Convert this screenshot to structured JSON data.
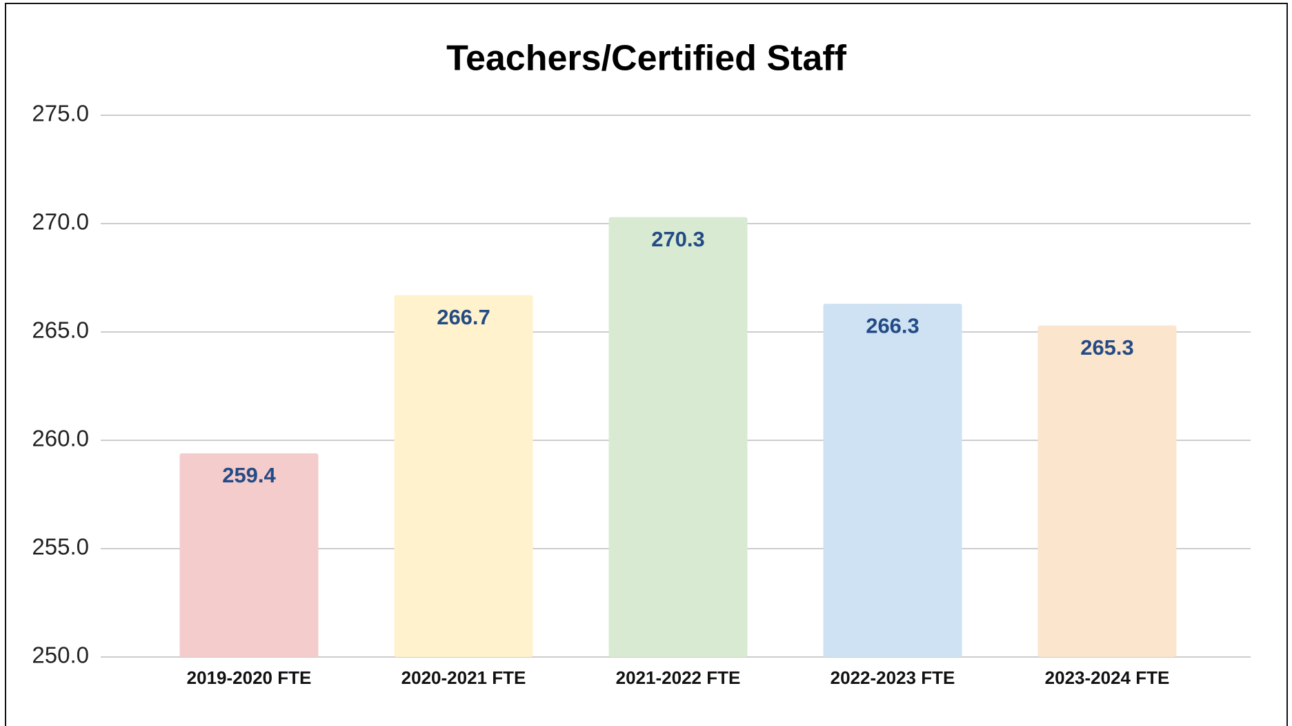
{
  "chart_data": {
    "type": "bar",
    "title": "Teachers/Certified Staff",
    "categories": [
      "2019-2020 FTE",
      "2020-2021 FTE",
      "2021-2022 FTE",
      "2022-2023 FTE",
      "2023-2024 FTE"
    ],
    "values": [
      259.4,
      266.7,
      270.3,
      266.3,
      265.3
    ],
    "colors": [
      "#f4cccc",
      "#fff2cc",
      "#d9ead3",
      "#cfe2f3",
      "#fce5cd"
    ],
    "ylim": [
      250,
      275
    ],
    "yticks": [
      {
        "value": 250,
        "label": "250.0"
      },
      {
        "value": 255,
        "label": "255.0"
      },
      {
        "value": 260,
        "label": "260.0"
      },
      {
        "value": 265,
        "label": "265.0"
      },
      {
        "value": 270,
        "label": "270.0"
      },
      {
        "value": 275,
        "label": "275.0"
      }
    ],
    "grid": true
  }
}
